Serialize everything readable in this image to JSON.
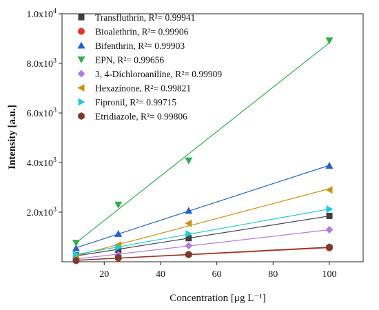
{
  "chart_data": {
    "type": "scatter",
    "xlabel": "Concentration  [μg L⁻¹]",
    "ylabel": "Intensity [a.u.]",
    "xlim": [
      5,
      112
    ],
    "ylim": [
      0,
      10000
    ],
    "x_ticks": [
      20,
      40,
      60,
      80,
      100
    ],
    "x_tick_labels": [
      "20",
      "40",
      "60",
      "80",
      "100"
    ],
    "y_ticks": [
      2000,
      4000,
      6000,
      8000,
      10000
    ],
    "y_tick_labels": [
      {
        "base": "2.0x10",
        "exp": "3"
      },
      {
        "base": "4.0x10",
        "exp": "3"
      },
      {
        "base": "6.0x10",
        "exp": "3"
      },
      {
        "base": "8.0x10",
        "exp": "3"
      },
      {
        "base": "1.0x10",
        "exp": "4"
      }
    ],
    "x": [
      10,
      25,
      50,
      100
    ],
    "legend_position": "top-left",
    "grid": false,
    "fit_lines": true,
    "series": [
      {
        "name": "Transfluthrin, R²= 0.99941",
        "color": "#404040",
        "marker": "square",
        "values": [
          260,
          480,
          950,
          1850
        ]
      },
      {
        "name": "Bioalethrin, R²= 0.99906",
        "color": "#e8332a",
        "marker": "circle",
        "values": [
          50,
          140,
          290,
          560
        ]
      },
      {
        "name": "Bifenthrin, R²= 0.99903",
        "color": "#2461c9",
        "marker": "triangle-up",
        "values": [
          550,
          1130,
          2060,
          3880
        ]
      },
      {
        "name": "EPN, R²= 0.99656",
        "color": "#2fad52",
        "marker": "triangle-down",
        "values": [
          760,
          2300,
          4080,
          8920
        ]
      },
      {
        "name": "3, 4-Dichloroaniline, R²= 0.99909",
        "color": "#b47ce0",
        "marker": "diamond",
        "values": [
          130,
          280,
          650,
          1290
        ]
      },
      {
        "name": "Hexazinone, R²= 0.99821",
        "color": "#c99210",
        "marker": "triangle-left",
        "values": [
          200,
          680,
          1550,
          2900
        ]
      },
      {
        "name": "Fipronil, R²= 0.99715",
        "color": "#1ec9dc",
        "marker": "triangle-right",
        "values": [
          300,
          580,
          1130,
          2120
        ]
      },
      {
        "name": "Etridiazole, R²= 0.99806",
        "color": "#7a3b2e",
        "marker": "hexagon",
        "values": [
          50,
          170,
          290,
          590
        ]
      }
    ]
  }
}
